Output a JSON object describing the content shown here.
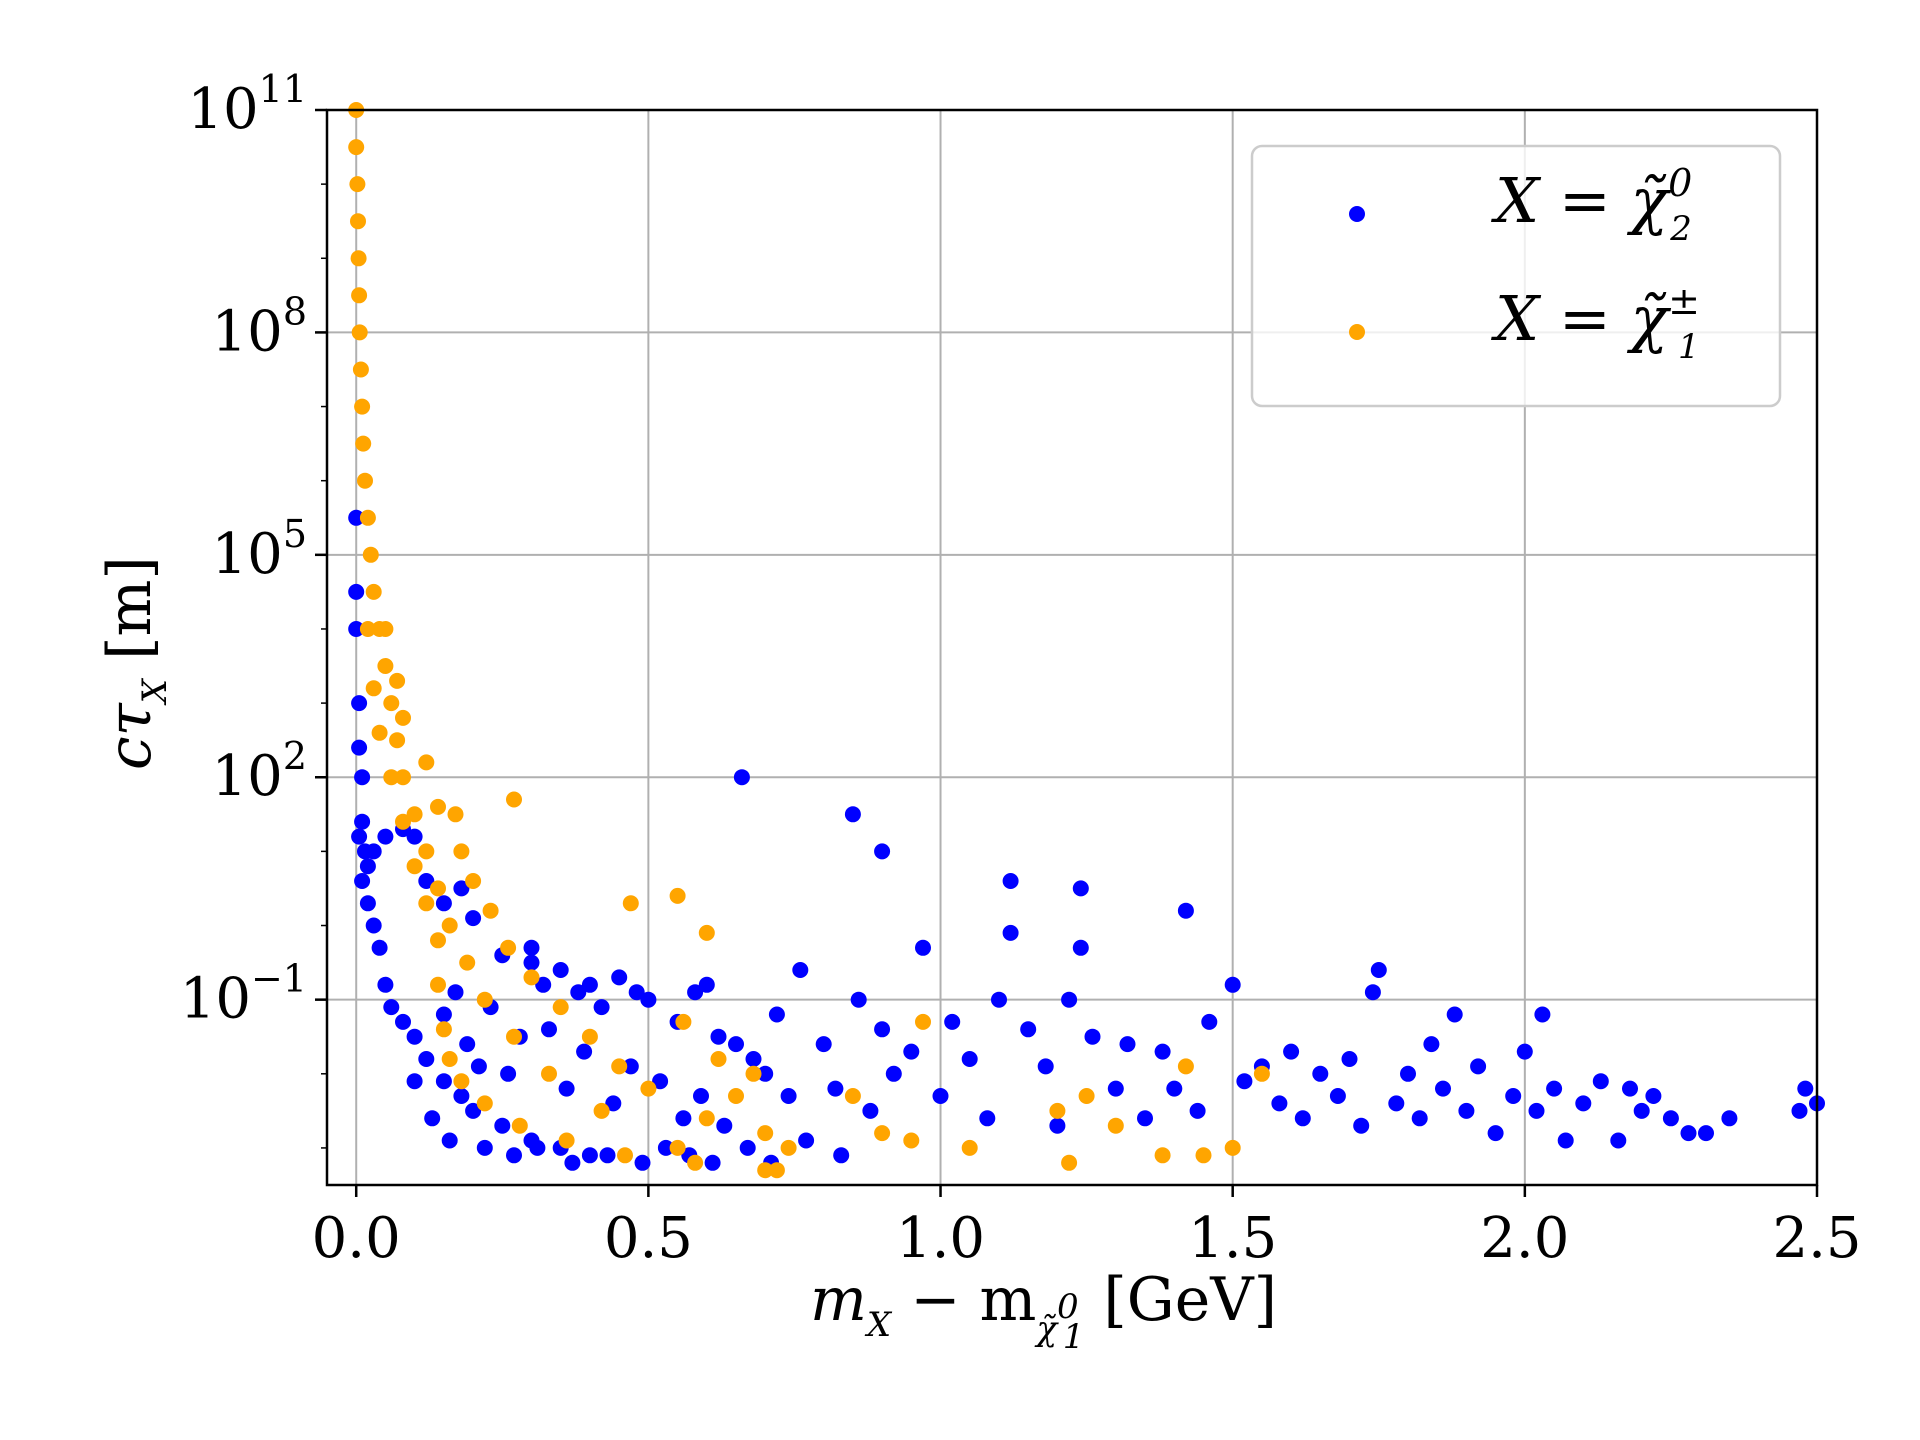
{
  "colors": {
    "neutralino": "#0000ff",
    "chargino": "#ffa500",
    "grid": "#b0b0b0",
    "axis": "#000000"
  },
  "axes": {
    "x_ticks": [
      "0.0",
      "0.5",
      "1.0",
      "1.5",
      "2.0",
      "2.5"
    ],
    "y_ticks": [
      {
        "base": "10",
        "exp": "11"
      },
      {
        "base": "10",
        "exp": "8"
      },
      {
        "base": "10",
        "exp": "5"
      },
      {
        "base": "10",
        "exp": "2"
      },
      {
        "base": "10",
        "exp": "−1"
      }
    ]
  },
  "chart_data": {
    "type": "scatter",
    "xlabel": "m_X − m_χ̃1^0 [GeV]",
    "ylabel": "cτ_X [m]",
    "xlim": [
      -0.05,
      2.5
    ],
    "ylim_log10": [
      -3.5,
      11
    ],
    "y_scale": "log",
    "x_ticks": [
      0.0,
      0.5,
      1.0,
      1.5,
      2.0,
      2.5
    ],
    "y_ticks": [
      100000000000.0,
      100000000.0,
      100000.0,
      100.0,
      0.1
    ],
    "grid": true,
    "legend_position": "top-right",
    "series": [
      {
        "name": "X = χ̃2^0",
        "color": "#0000ff",
        "points": [
          [
            0.0,
            5.5
          ],
          [
            0.0,
            4.5
          ],
          [
            0.0,
            4.0
          ],
          [
            0.005,
            3.0
          ],
          [
            0.005,
            2.4
          ],
          [
            0.01,
            2.0
          ],
          [
            0.01,
            1.4
          ],
          [
            0.015,
            1.0
          ],
          [
            0.02,
            0.8
          ],
          [
            0.02,
            0.3
          ],
          [
            0.03,
            0.0
          ],
          [
            0.04,
            -0.3
          ],
          [
            0.05,
            -0.8
          ],
          [
            0.06,
            -1.1
          ],
          [
            0.08,
            -1.3
          ],
          [
            0.1,
            -1.5
          ],
          [
            0.12,
            -1.8
          ],
          [
            0.15,
            -2.1
          ],
          [
            0.18,
            -2.3
          ],
          [
            0.2,
            -2.5
          ],
          [
            0.25,
            -2.7
          ],
          [
            0.3,
            -2.9
          ],
          [
            0.35,
            -3.0
          ],
          [
            0.4,
            -3.1
          ],
          [
            0.005,
            1.2
          ],
          [
            0.01,
            0.6
          ],
          [
            0.03,
            1.0
          ],
          [
            0.05,
            1.2
          ],
          [
            0.08,
            1.3
          ],
          [
            0.1,
            1.2
          ],
          [
            0.12,
            0.6
          ],
          [
            0.15,
            0.3
          ],
          [
            0.18,
            0.5
          ],
          [
            0.2,
            0.1
          ],
          [
            0.25,
            -0.4
          ],
          [
            0.3,
            -0.5
          ],
          [
            0.35,
            -0.6
          ],
          [
            0.4,
            -0.8
          ],
          [
            0.45,
            -0.7
          ],
          [
            0.48,
            -0.9
          ],
          [
            0.3,
            -0.3
          ],
          [
            0.32,
            -0.8
          ],
          [
            0.38,
            -0.9
          ],
          [
            0.42,
            -1.1
          ],
          [
            0.5,
            -1.0
          ],
          [
            0.55,
            -1.3
          ],
          [
            0.58,
            -0.9
          ],
          [
            0.6,
            -0.8
          ],
          [
            0.62,
            -1.5
          ],
          [
            0.65,
            -1.6
          ],
          [
            0.66,
            2.0
          ],
          [
            0.68,
            -1.8
          ],
          [
            0.7,
            -2.0
          ],
          [
            0.72,
            -1.2
          ],
          [
            0.74,
            -2.3
          ],
          [
            0.76,
            -0.6
          ],
          [
            0.8,
            -1.6
          ],
          [
            0.82,
            -2.2
          ],
          [
            0.85,
            1.5
          ],
          [
            0.86,
            -1.0
          ],
          [
            0.88,
            -2.5
          ],
          [
            0.9,
            -1.4
          ],
          [
            0.9,
            1.0
          ],
          [
            0.92,
            -2.0
          ],
          [
            0.95,
            -1.7
          ],
          [
            0.97,
            -0.3
          ],
          [
            1.0,
            -2.3
          ],
          [
            1.02,
            -1.3
          ],
          [
            1.05,
            -1.8
          ],
          [
            1.08,
            -2.6
          ],
          [
            1.1,
            -1.0
          ],
          [
            1.12,
            -0.1
          ],
          [
            1.12,
            0.6
          ],
          [
            1.15,
            -1.4
          ],
          [
            1.18,
            -1.9
          ],
          [
            1.2,
            -2.7
          ],
          [
            1.22,
            -1.0
          ],
          [
            1.24,
            0.5
          ],
          [
            1.24,
            -0.3
          ],
          [
            1.26,
            -1.5
          ],
          [
            1.3,
            -2.2
          ],
          [
            1.32,
            -1.6
          ],
          [
            1.35,
            -2.6
          ],
          [
            1.38,
            -1.7
          ],
          [
            1.4,
            -2.2
          ],
          [
            1.42,
            0.2
          ],
          [
            1.44,
            -2.5
          ],
          [
            1.46,
            -1.3
          ],
          [
            1.5,
            -0.8
          ],
          [
            1.52,
            -2.1
          ],
          [
            1.55,
            -1.9
          ],
          [
            1.58,
            -2.4
          ],
          [
            1.6,
            -1.7
          ],
          [
            1.62,
            -2.6
          ],
          [
            1.65,
            -2.0
          ],
          [
            1.68,
            -2.3
          ],
          [
            1.7,
            -1.8
          ],
          [
            1.72,
            -2.7
          ],
          [
            1.74,
            -0.9
          ],
          [
            1.75,
            -0.6
          ],
          [
            1.78,
            -2.4
          ],
          [
            1.8,
            -2.0
          ],
          [
            1.82,
            -2.6
          ],
          [
            1.84,
            -1.6
          ],
          [
            1.86,
            -2.2
          ],
          [
            1.88,
            -1.2
          ],
          [
            1.9,
            -2.5
          ],
          [
            1.92,
            -1.9
          ],
          [
            1.95,
            -2.8
          ],
          [
            1.98,
            -2.3
          ],
          [
            2.0,
            -1.7
          ],
          [
            2.02,
            -2.5
          ],
          [
            2.03,
            -1.2
          ],
          [
            2.05,
            -2.2
          ],
          [
            2.07,
            -2.9
          ],
          [
            2.1,
            -2.4
          ],
          [
            2.13,
            -2.1
          ],
          [
            2.16,
            -2.9
          ],
          [
            2.18,
            -2.2
          ],
          [
            2.2,
            -2.5
          ],
          [
            2.22,
            -2.3
          ],
          [
            2.25,
            -2.6
          ],
          [
            2.28,
            -2.8
          ],
          [
            2.31,
            -2.8
          ],
          [
            2.35,
            -2.6
          ],
          [
            2.47,
            -2.5
          ],
          [
            2.48,
            -2.2
          ],
          [
            2.5,
            -2.4
          ],
          [
            0.15,
            -1.2
          ],
          [
            0.17,
            -0.9
          ],
          [
            0.19,
            -1.6
          ],
          [
            0.21,
            -1.9
          ],
          [
            0.23,
            -1.1
          ],
          [
            0.26,
            -2.0
          ],
          [
            0.28,
            -1.5
          ],
          [
            0.33,
            -1.4
          ],
          [
            0.36,
            -2.2
          ],
          [
            0.39,
            -1.7
          ],
          [
            0.44,
            -2.4
          ],
          [
            0.47,
            -1.9
          ],
          [
            0.52,
            -2.1
          ],
          [
            0.56,
            -2.6
          ],
          [
            0.59,
            -2.3
          ],
          [
            0.63,
            -2.7
          ],
          [
            0.1,
            -2.1
          ],
          [
            0.13,
            -2.6
          ],
          [
            0.16,
            -2.9
          ],
          [
            0.22,
            -3.0
          ],
          [
            0.27,
            -3.1
          ],
          [
            0.31,
            -3.0
          ],
          [
            0.37,
            -3.2
          ],
          [
            0.43,
            -3.1
          ],
          [
            0.49,
            -3.2
          ],
          [
            0.53,
            -3.0
          ],
          [
            0.57,
            -3.1
          ],
          [
            0.61,
            -3.2
          ],
          [
            0.67,
            -3.0
          ],
          [
            0.71,
            -3.2
          ],
          [
            0.77,
            -2.9
          ],
          [
            0.83,
            -3.1
          ]
        ]
      },
      {
        "name": "X = χ̃1^±",
        "color": "#ffa500",
        "points": [
          [
            0.0,
            11.0
          ],
          [
            0.0,
            10.5
          ],
          [
            0.002,
            10.0
          ],
          [
            0.003,
            9.5
          ],
          [
            0.004,
            9.0
          ],
          [
            0.005,
            8.5
          ],
          [
            0.006,
            8.0
          ],
          [
            0.008,
            7.5
          ],
          [
            0.01,
            7.0
          ],
          [
            0.012,
            6.5
          ],
          [
            0.015,
            6.0
          ],
          [
            0.02,
            5.5
          ],
          [
            0.025,
            5.0
          ],
          [
            0.03,
            4.5
          ],
          [
            0.04,
            4.0
          ],
          [
            0.05,
            3.5
          ],
          [
            0.06,
            3.0
          ],
          [
            0.07,
            2.5
          ],
          [
            0.08,
            2.0
          ],
          [
            0.1,
            1.5
          ],
          [
            0.12,
            1.0
          ],
          [
            0.14,
            0.5
          ],
          [
            0.16,
            0.0
          ],
          [
            0.19,
            -0.5
          ],
          [
            0.22,
            -1.0
          ],
          [
            0.27,
            -1.5
          ],
          [
            0.33,
            -2.0
          ],
          [
            0.42,
            -2.5
          ],
          [
            0.55,
            -3.0
          ],
          [
            0.7,
            -3.3
          ],
          [
            0.02,
            4.0
          ],
          [
            0.03,
            3.2
          ],
          [
            0.04,
            2.6
          ],
          [
            0.06,
            2.0
          ],
          [
            0.08,
            1.4
          ],
          [
            0.1,
            0.8
          ],
          [
            0.12,
            0.3
          ],
          [
            0.14,
            -0.2
          ],
          [
            0.14,
            -0.8
          ],
          [
            0.15,
            -1.4
          ],
          [
            0.16,
            -1.8
          ],
          [
            0.18,
            -2.1
          ],
          [
            0.22,
            -2.4
          ],
          [
            0.28,
            -2.7
          ],
          [
            0.36,
            -2.9
          ],
          [
            0.46,
            -3.1
          ],
          [
            0.58,
            -3.2
          ],
          [
            0.72,
            -3.3
          ],
          [
            0.05,
            4.0
          ],
          [
            0.07,
            3.3
          ],
          [
            0.08,
            2.8
          ],
          [
            0.12,
            2.2
          ],
          [
            0.14,
            1.6
          ],
          [
            0.17,
            1.5
          ],
          [
            0.18,
            1.0
          ],
          [
            0.2,
            0.6
          ],
          [
            0.23,
            0.2
          ],
          [
            0.26,
            -0.3
          ],
          [
            0.27,
            1.7
          ],
          [
            0.3,
            -0.7
          ],
          [
            0.35,
            -1.1
          ],
          [
            0.4,
            -1.5
          ],
          [
            0.45,
            -1.9
          ],
          [
            0.47,
            0.3
          ],
          [
            0.5,
            -2.2
          ],
          [
            0.55,
            0.4
          ],
          [
            0.56,
            -1.3
          ],
          [
            0.6,
            -0.1
          ],
          [
            0.6,
            -2.6
          ],
          [
            0.62,
            -1.8
          ],
          [
            0.65,
            -2.3
          ],
          [
            0.68,
            -2.0
          ],
          [
            0.7,
            -2.8
          ],
          [
            0.74,
            -3.0
          ],
          [
            0.85,
            -2.3
          ],
          [
            0.9,
            -2.8
          ],
          [
            0.95,
            -2.9
          ],
          [
            0.97,
            -1.3
          ],
          [
            1.05,
            -3.0
          ],
          [
            1.2,
            -2.5
          ],
          [
            1.22,
            -3.2
          ],
          [
            1.25,
            -2.3
          ],
          [
            1.3,
            -2.7
          ],
          [
            1.38,
            -3.1
          ],
          [
            1.42,
            -1.9
          ],
          [
            1.45,
            -3.1
          ],
          [
            1.5,
            -3.0
          ],
          [
            1.55,
            -2.0
          ]
        ]
      }
    ]
  },
  "legend": {
    "entries": [
      {
        "prefix": "X = ",
        "symbol": "χ̃",
        "sup": "0",
        "sub": "2"
      },
      {
        "prefix": "X = ",
        "symbol": "χ̃",
        "sup": "±",
        "sub": "1"
      }
    ]
  },
  "labels": {
    "x_main": "m",
    "x_sub": "X",
    "x_mid": " − m",
    "x_sub2_sym": "χ̃",
    "x_sub2_sup": "0",
    "x_sub2_sub": "1",
    "x_unit": " [GeV]",
    "y_main": "cτ",
    "y_sub": "X",
    "y_unit": " [m]"
  }
}
